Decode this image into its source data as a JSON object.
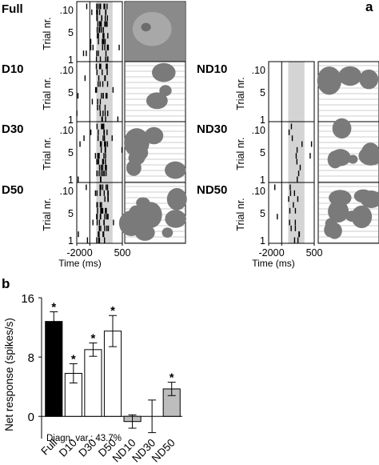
{
  "panel_a": {
    "letter": "a",
    "y_label": "Trial nr.",
    "x_label": "Time (ms)",
    "x_ticks": [
      "-200",
      "0",
      "500"
    ],
    "x_ticks_right": [
      "-200",
      "0",
      "500"
    ],
    "y_ticks": [
      "10",
      "5",
      "1"
    ],
    "x_range_ms": [
      -200,
      500
    ],
    "stimulus_window_ms": [
      100,
      350
    ],
    "left_conditions": [
      "Full",
      "D10",
      "D30",
      "D50"
    ],
    "right_conditions": [
      "ND10",
      "ND30",
      "ND50"
    ],
    "colors": {
      "shade": "#d4d4d4",
      "spike": "#000000",
      "image": "#7a7a7a"
    }
  },
  "panel_b": {
    "letter": "b",
    "annotation": "Diagn. var.: 43.7%",
    "significance_marker": "*"
  },
  "chart_data": {
    "type": "bar",
    "categories": [
      "Full",
      "D10",
      "D30",
      "D50",
      "ND10",
      "ND30",
      "ND50"
    ],
    "values": [
      12.8,
      5.8,
      9.0,
      11.5,
      -0.7,
      0.0,
      3.7
    ],
    "errors": [
      1.3,
      1.3,
      0.9,
      2.1,
      0.9,
      2.2,
      0.9
    ],
    "significant": [
      true,
      true,
      true,
      true,
      false,
      false,
      true
    ],
    "fill_colors": [
      "#000000",
      "#ffffff",
      "#ffffff",
      "#ffffff",
      "#bdbdbd",
      "#bdbdbd",
      "#bdbdbd"
    ],
    "ylabel": "Net response (spikes/s)",
    "yticks": [
      0,
      8,
      16
    ],
    "ylim": [
      -3,
      16
    ]
  }
}
